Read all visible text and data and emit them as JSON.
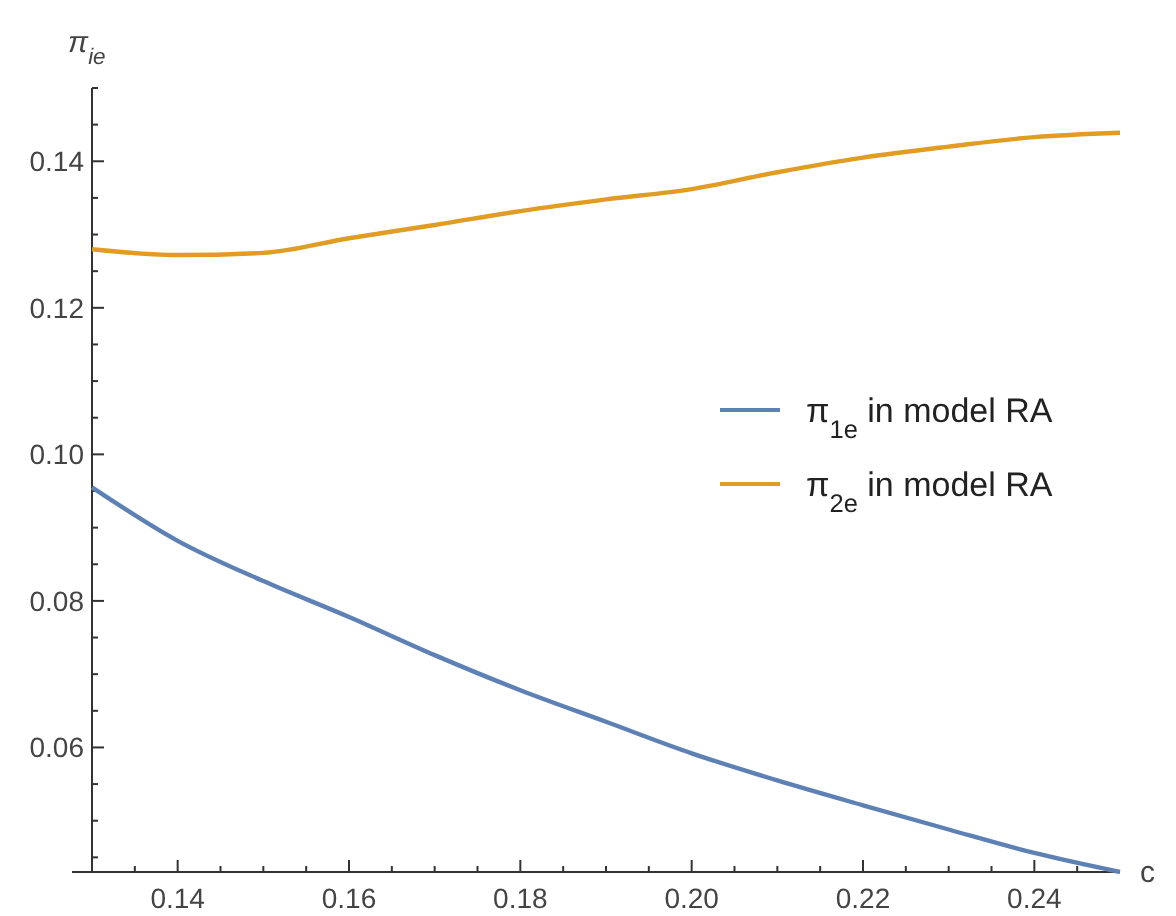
{
  "chart_data": {
    "type": "line",
    "xlabel": "c",
    "ylabel": "π$_{ie}$",
    "xlim": [
      0.13,
      0.25
    ],
    "ylim": [
      0.043,
      0.15
    ],
    "xticks": [
      {
        "value": 0.135,
        "label": null
      },
      0.14,
      {
        "value": 0.145,
        "label": null
      },
      {
        "value": 0.15,
        "label": null
      },
      {
        "value": 0.155,
        "label": null
      },
      0.16,
      {
        "value": 0.165,
        "label": null
      },
      {
        "value": 0.17,
        "label": null
      },
      {
        "value": 0.175,
        "label": null
      },
      0.18,
      {
        "value": 0.185,
        "label": null
      },
      {
        "value": 0.19,
        "label": null
      },
      {
        "value": 0.195,
        "label": null
      },
      {
        "value": 0.2,
        "label": "0.20"
      },
      {
        "value": 0.205,
        "label": null
      },
      {
        "value": 0.21,
        "label": null
      },
      {
        "value": 0.215,
        "label": null
      },
      0.22,
      {
        "value": 0.225,
        "label": null
      },
      {
        "value": 0.23,
        "label": null
      },
      {
        "value": 0.235,
        "label": null
      },
      0.24,
      {
        "value": 0.245,
        "label": null
      }
    ],
    "yticks": [
      {
        "value": 0.045,
        "label": null
      },
      {
        "value": 0.05,
        "label": null
      },
      {
        "value": 0.055,
        "label": null
      },
      0.06,
      {
        "value": 0.065,
        "label": null
      },
      {
        "value": 0.07,
        "label": null
      },
      {
        "value": 0.075,
        "label": null
      },
      0.08,
      {
        "value": 0.085,
        "label": null
      },
      {
        "value": 0.09,
        "label": null
      },
      {
        "value": 0.095,
        "label": null
      },
      {
        "value": 0.1,
        "label": "0.10"
      },
      {
        "value": 0.105,
        "label": null
      },
      {
        "value": 0.11,
        "label": null
      },
      {
        "value": 0.115,
        "label": null
      },
      0.12,
      {
        "value": 0.125,
        "label": null
      },
      {
        "value": 0.13,
        "label": null
      },
      {
        "value": 0.135,
        "label": null
      },
      0.14,
      {
        "value": 0.145,
        "label": null
      },
      {
        "value": 0.15,
        "label": null
      }
    ],
    "x": [
      0.13,
      0.14,
      0.15,
      0.16,
      0.17,
      0.18,
      0.19,
      0.2,
      0.21,
      0.22,
      0.23,
      0.24,
      0.25
    ],
    "series": [
      {
        "name": "π$_{1e}$ in model RA",
        "color": "#5e81b5",
        "values": [
          0.0955,
          0.0882,
          0.0827,
          0.0778,
          0.0726,
          0.0678,
          0.0635,
          0.0592,
          0.0555,
          0.0521,
          0.0488,
          0.0456,
          0.043
        ]
      },
      {
        "name": "π$_{2e}$ in model RA",
        "color": "#e19c24",
        "values": [
          0.128,
          0.1272,
          0.1275,
          0.1295,
          0.1313,
          0.1332,
          0.1348,
          0.1362,
          0.1385,
          0.1405,
          0.142,
          0.1433,
          0.1439
        ]
      }
    ],
    "legend": "right",
    "grid": false,
    "marker": "none",
    "line_style": "solid"
  }
}
